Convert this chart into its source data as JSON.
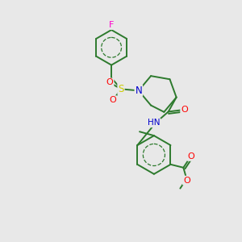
{
  "background_color": "#e8e8e8",
  "bond_color": "#2d7a2d",
  "bond_width": 1.4,
  "figsize": [
    3.0,
    3.0
  ],
  "dpi": 100,
  "atom_colors": {
    "N": "#0000cc",
    "O": "#ff0000",
    "S": "#cccc00",
    "F": "#ff00cc",
    "H": "#888888",
    "C": "#000000"
  }
}
